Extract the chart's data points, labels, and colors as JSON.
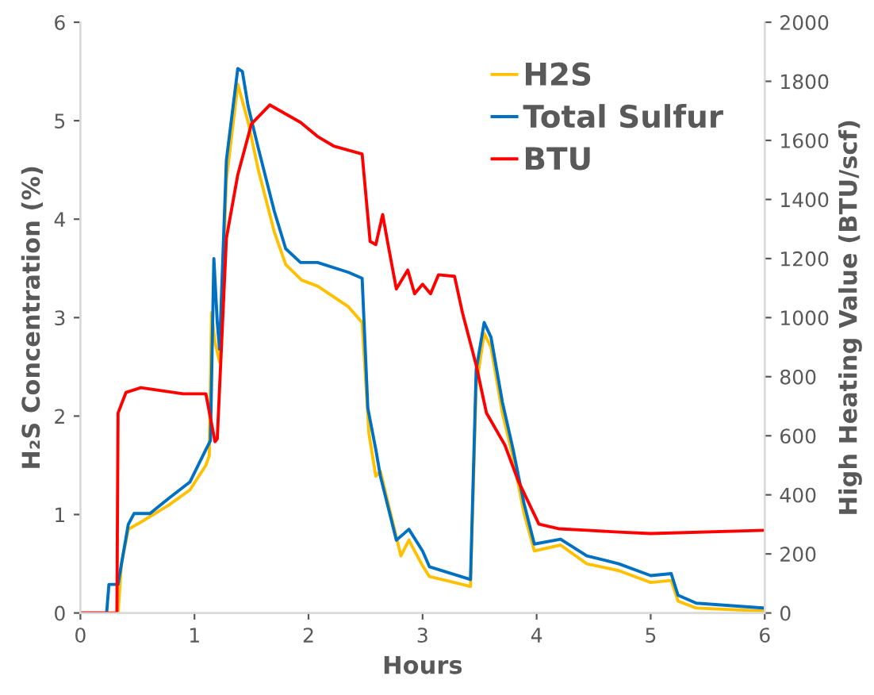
{
  "chart_data": {
    "type": "line",
    "xlabel": "Hours",
    "ylabel": "H₂S Concentration (%)",
    "y2label": "High Heating Value (BTU/scf)",
    "xlim": [
      0,
      6
    ],
    "xticks": [
      0,
      1,
      2,
      3,
      4,
      5,
      6
    ],
    "ylim": [
      0,
      6
    ],
    "yticks": [
      0,
      1,
      2,
      3,
      4,
      5,
      6
    ],
    "y2lim": [
      0,
      2000
    ],
    "y2ticks": [
      0,
      200,
      400,
      600,
      800,
      1000,
      1200,
      1400,
      1600,
      1800,
      2000
    ],
    "grid": false,
    "legend": "top right",
    "marker": "none",
    "line_style": "solid",
    "series": [
      {
        "name": "H2S",
        "color": "#ffc000",
        "x": [
          0,
          0.33,
          0.36,
          0.42,
          0.54,
          0.78,
          0.96,
          1.1,
          1.13,
          1.15,
          1.18,
          1.22,
          1.28,
          1.38,
          1.47,
          1.56,
          1.7,
          1.8,
          1.94,
          2.08,
          2.35,
          2.47,
          2.53,
          2.59,
          2.63,
          2.81,
          2.88,
          3.0,
          3.06,
          3.42,
          3.47,
          3.54,
          3.6,
          3.7,
          3.79,
          3.89,
          3.98,
          4.21,
          4.44,
          4.72,
          5.0,
          5.18,
          5.24,
          5.4,
          6.0
        ],
        "values": [
          0,
          0,
          0.5,
          0.85,
          0.93,
          1.1,
          1.25,
          1.5,
          1.6,
          3.05,
          2.75,
          2.55,
          4.4,
          5.37,
          4.99,
          4.5,
          3.87,
          3.54,
          3.38,
          3.32,
          3.11,
          2.95,
          1.82,
          1.39,
          1.44,
          0.58,
          0.74,
          0.48,
          0.37,
          0.27,
          2.3,
          2.84,
          2.7,
          2.03,
          1.6,
          1.01,
          0.63,
          0.69,
          0.5,
          0.43,
          0.31,
          0.33,
          0.12,
          0.05,
          0.02
        ]
      },
      {
        "name": "Total Sulfur",
        "color": "#0070c0",
        "x": [
          0,
          0.23,
          0.25,
          0.33,
          0.36,
          0.42,
          0.47,
          0.61,
          0.78,
          0.96,
          1.1,
          1.14,
          1.17,
          1.2,
          1.22,
          1.28,
          1.38,
          1.42,
          1.47,
          1.56,
          1.7,
          1.8,
          1.93,
          2.08,
          2.35,
          2.47,
          2.52,
          2.59,
          2.63,
          2.77,
          2.88,
          3.0,
          3.06,
          3.42,
          3.47,
          3.54,
          3.6,
          3.7,
          3.79,
          3.89,
          3.98,
          4.21,
          4.44,
          4.72,
          5.0,
          5.18,
          5.24,
          5.4,
          6.0
        ],
        "values": [
          0,
          0,
          0.29,
          0.29,
          0.5,
          0.9,
          1.01,
          1.01,
          1.17,
          1.33,
          1.66,
          1.75,
          3.6,
          2.95,
          2.68,
          4.6,
          5.53,
          5.5,
          5.15,
          4.72,
          4.08,
          3.7,
          3.56,
          3.56,
          3.46,
          3.4,
          2.08,
          1.66,
          1.39,
          0.74,
          0.85,
          0.63,
          0.47,
          0.34,
          2.47,
          2.95,
          2.8,
          2.14,
          1.68,
          1.11,
          0.7,
          0.75,
          0.58,
          0.5,
          0.38,
          0.4,
          0.18,
          0.1,
          0.05
        ]
      },
      {
        "name": "BTU",
        "color": "#ff0000",
        "axis": "y2",
        "x": [
          0,
          0.32,
          0.33,
          0.4,
          0.53,
          0.9,
          1.1,
          1.15,
          1.18,
          1.2,
          1.28,
          1.38,
          1.5,
          1.66,
          1.93,
          2.08,
          2.22,
          2.47,
          2.54,
          2.59,
          2.65,
          2.7,
          2.77,
          2.87,
          2.93,
          3.0,
          3.07,
          3.14,
          3.28,
          3.35,
          3.47,
          3.56,
          3.72,
          3.84,
          4.02,
          4.2,
          4.44,
          4.72,
          5.0,
          6.0
        ],
        "values": [
          0,
          0,
          677,
          747,
          763,
          742,
          742,
          640,
          580,
          590,
          1269,
          1484,
          1656,
          1720,
          1661,
          1613,
          1581,
          1554,
          1258,
          1247,
          1349,
          1242,
          1097,
          1161,
          1081,
          1113,
          1081,
          1145,
          1140,
          1016,
          839,
          677,
          570,
          446,
          301,
          285,
          280,
          274,
          269,
          280
        ]
      }
    ]
  }
}
